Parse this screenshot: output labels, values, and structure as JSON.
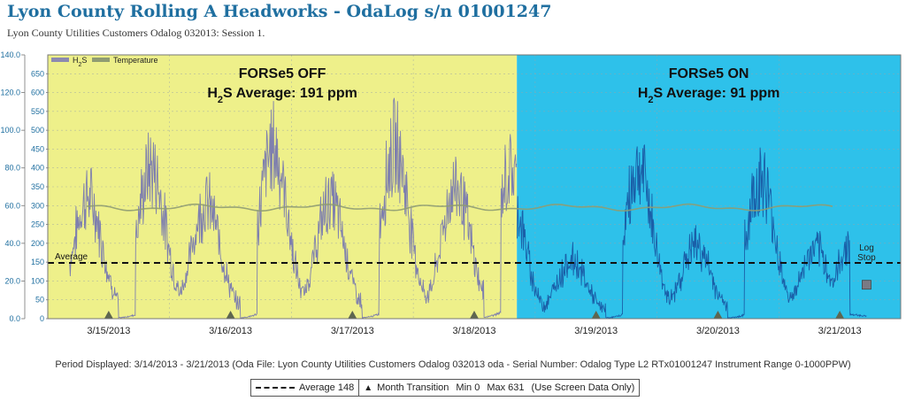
{
  "header": {
    "title": "Lyon County Rolling A Headworks - OdaLog s/n 01001247",
    "subtitle": "Lyon County Utilities Customers Odalog 032013: Session 1."
  },
  "chart_data": {
    "type": "line",
    "title": "",
    "x_ticks": [
      "3/15/2013",
      "3/16/2013",
      "3/17/2013",
      "3/18/2013",
      "3/19/2013",
      "3/20/2013",
      "3/21/2013"
    ],
    "x_range": [
      "3/14/2013",
      "3/21/2013"
    ],
    "y_left": {
      "label": "Temperature",
      "ticks": [
        "0.0",
        "20.0",
        "40.0",
        "60.0",
        "80.0",
        "100.0",
        "120.0",
        "140.0"
      ],
      "range": [
        0,
        140
      ]
    },
    "y_right": {
      "label": "H2S",
      "ticks": [
        "0",
        "50",
        "100",
        "150",
        "200",
        "250",
        "300",
        "350",
        "400",
        "450",
        "500",
        "550",
        "600",
        "650"
      ],
      "range": [
        0,
        700
      ]
    },
    "legend": [
      {
        "name": "H",
        "sub": "2",
        "tail": "S",
        "color": "#8c8ab0"
      },
      {
        "name": "Temperature",
        "sub": "",
        "tail": "",
        "color": "#8f9c72"
      }
    ],
    "legend_position": "top-left",
    "regions": [
      {
        "label": "FORSe5 OFF",
        "avg_pre": "H",
        "avg_sub": "2",
        "avg_post": "S Average: 191 ppm",
        "color": "#eef08a",
        "start_day": 0,
        "end_day": 3.85
      },
      {
        "label": "FORSe5 ON",
        "avg_pre": "H",
        "avg_sub": "2",
        "avg_post": "S Average: 91 ppm",
        "color": "#2ec1ea",
        "start_day": 3.85,
        "end_day": 7
      }
    ],
    "average": {
      "label": "Average",
      "value": 148
    },
    "month_transition_days": [
      0.5,
      1.5,
      2.5,
      3.5,
      4.5,
      5.5,
      6.5
    ],
    "log_stop": {
      "label_line1": "Log",
      "label_line2": "Stop",
      "day": 6.72
    },
    "h2s_daily_peaks": [
      {
        "day": 0.33,
        "value": 390
      },
      {
        "day": 0.85,
        "value": 490
      },
      {
        "day": 1.3,
        "value": 370
      },
      {
        "day": 1.85,
        "value": 560
      },
      {
        "day": 2.32,
        "value": 380
      },
      {
        "day": 2.85,
        "value": 560
      },
      {
        "day": 3.35,
        "value": 430
      },
      {
        "day": 3.8,
        "value": 480
      },
      {
        "day": 4.3,
        "value": 210
      },
      {
        "day": 4.85,
        "value": 580
      },
      {
        "day": 5.32,
        "value": 270
      },
      {
        "day": 5.85,
        "value": 540
      },
      {
        "day": 6.3,
        "value": 250
      },
      {
        "day": 6.6,
        "value": 290
      }
    ],
    "temperature_approx": 59
  },
  "footer": {
    "period": "Period Displayed: 3/14/2013 - 3/21/2013 (Oda File: Lyon County Utilities Customers Odalog 032013 oda - Serial Number: Odalog Type L2 RTx01001247 Instrument Range 0-1000PPW)",
    "legend": {
      "average": "Average 148",
      "month_transition": "Month Transition",
      "min": "Min 0",
      "max": "Max 631",
      "note": "(Use Screen Data Only)"
    }
  }
}
